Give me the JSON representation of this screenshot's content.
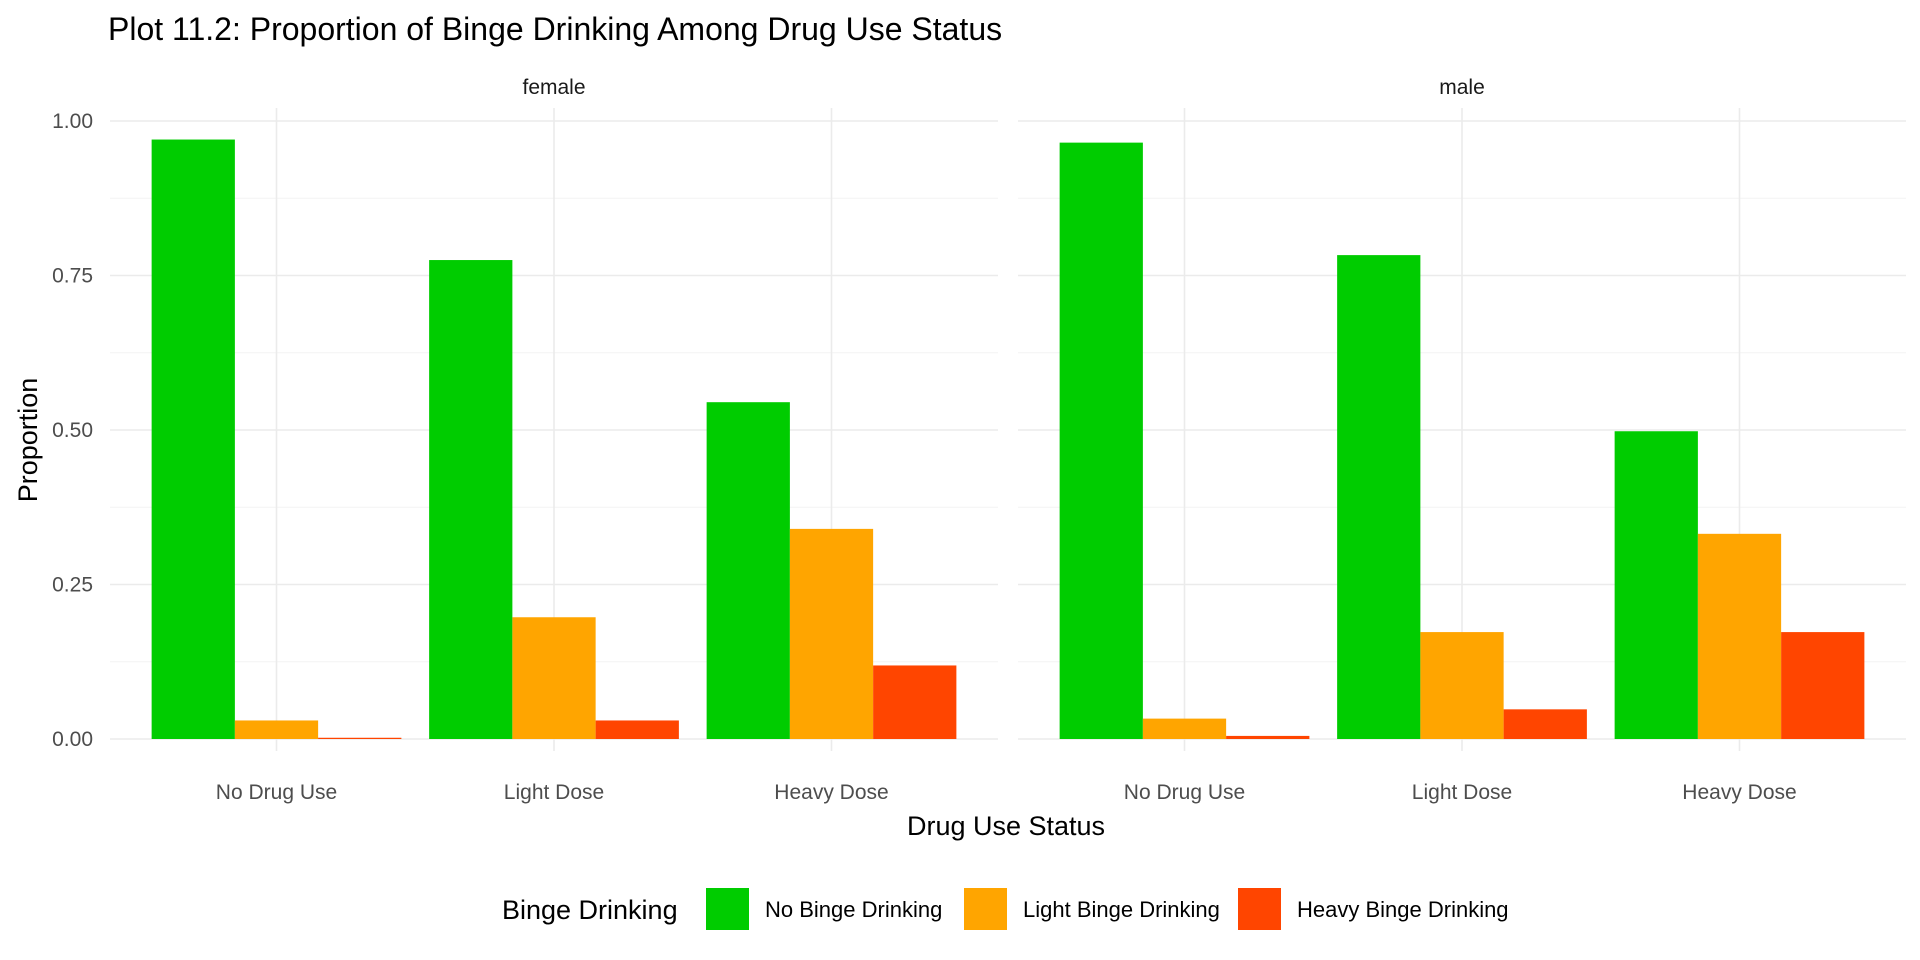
{
  "chart_data": {
    "type": "bar",
    "title": "Plot 11.2: Proportion of Binge Drinking Among Drug Use Status",
    "xlabel": "Drug Use Status",
    "ylabel": "Proportion",
    "ylim": [
      0,
      1.02
    ],
    "yticks": [
      0,
      0.25,
      0.5,
      0.75,
      1.0
    ],
    "ytick_labels": [
      "0.00",
      "0.25",
      "0.50",
      "0.75",
      "1.00"
    ],
    "categories": [
      "No Drug Use",
      "Light Dose",
      "Heavy Dose"
    ],
    "grid": true,
    "legend": {
      "title": "Binge Drinking",
      "position": "bottom",
      "entries": [
        "No Binge Drinking",
        "Light Binge Drinking",
        "Heavy Binge Drinking"
      ]
    },
    "colors": [
      "#00cc00",
      "#ffa500",
      "#ff4500"
    ],
    "facets": [
      {
        "label": "female",
        "series": [
          {
            "name": "No Binge Drinking",
            "values": [
              0.97,
              0.775,
              0.545
            ]
          },
          {
            "name": "Light Binge Drinking",
            "values": [
              0.03,
              0.197,
              0.34
            ]
          },
          {
            "name": "Heavy Binge Drinking",
            "values": [
              0.002,
              0.03,
              0.119
            ]
          }
        ]
      },
      {
        "label": "male",
        "series": [
          {
            "name": "No Binge Drinking",
            "values": [
              0.965,
              0.783,
              0.498
            ]
          },
          {
            "name": "Light Binge Drinking",
            "values": [
              0.033,
              0.173,
              0.332
            ]
          },
          {
            "name": "Heavy Binge Drinking",
            "values": [
              0.005,
              0.048,
              0.173
            ]
          }
        ]
      }
    ]
  }
}
